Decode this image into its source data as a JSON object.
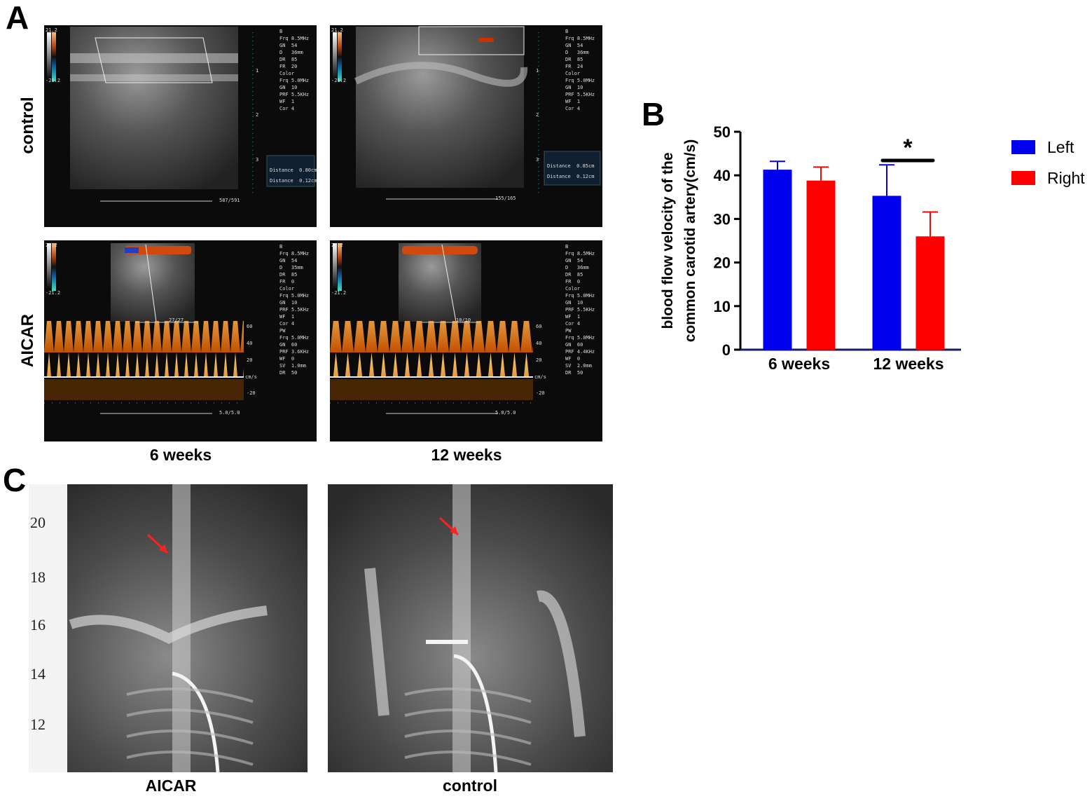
{
  "panels": {
    "a": "A",
    "b": "B",
    "c": "C"
  },
  "panel_a": {
    "row_labels": [
      "control",
      "AICAR"
    ],
    "col_labels": [
      "6 weeks",
      "12 weeks"
    ],
    "scale_top": "21.2",
    "scale_bottom": "-21.2",
    "control_6": {
      "params": "B\nFrq 8.5MHz\nGN  54\nD   36mm\nDR  85\nFR  20\nColor\nFrq 5.0MHz\nGN  10\nPRF 5.5KHz\nWF  1\nCor 4",
      "distance1": "Distance  0.80cm",
      "distance2": "Distance  0.12cm",
      "counter": "587/591",
      "depth_ticks": [
        "1",
        "2",
        "3"
      ]
    },
    "control_12": {
      "params": "B\nFrq 8.5MHz\nGN  54\nD   36mm\nDR  85\nFR  24\nColor\nFrq 5.0MHz\nGN  10\nPRF 5.5KHz\nWF  1\nCor 4",
      "distance1": "Distance  0.85cm",
      "distance2": "Distance  0.12cm",
      "counter": "155/165",
      "depth_ticks": [
        "1",
        "2",
        "3"
      ]
    },
    "aicar_6": {
      "params": "B\nFrq 8.5MHz\nGN  54\nD   35mm\nDR  85\nFR  0\nColor\nFrq 5.0MHz\nGN  10\nPRF 5.5KHz\nWF  1\nCor 4\nPW\nFrq 5.0MHz\nGN  60\nPRF 3.6KHz\nWF  0\nSV  1.0mm\nDR  50",
      "counter_top": "27/27",
      "counter": "5.0/5.0",
      "pw_ticks": [
        "60",
        "40",
        "20",
        "cm/s",
        "-20"
      ]
    },
    "aicar_12": {
      "params": "B\nFrq 8.5MHz\nGN  54\nD   36mm\nDR  85\nFR  0\nColor\nFrq 5.0MHz\nGN  10\nPRF 5.5KHz\nWF  1\nCor 4\nPW\nFrq 5.0MHz\nGN  60\nPRF 4.4KHz\nWF  0\nSV  2.0mm\nDR  50",
      "counter_top": "10/10",
      "counter": "5.0/5.0",
      "pw_ticks": [
        "60",
        "40",
        "20",
        "cm/s",
        "-20"
      ]
    }
  },
  "chart_data": {
    "type": "bar",
    "title": "",
    "ylabel_line1": "blood flow velocity of the",
    "ylabel_line2": "common carotid artery(cm/s)",
    "categories": [
      "6 weeks",
      "12 weeks"
    ],
    "ylim": [
      0,
      50
    ],
    "yticks": [
      "0",
      "10",
      "20",
      "30",
      "40",
      "50"
    ],
    "series": [
      {
        "name": "Left",
        "color": "#0000ee",
        "values": [
          41.3,
          35.3
        ],
        "errors": [
          1.9,
          7.1
        ]
      },
      {
        "name": "Right",
        "color": "#ff0000",
        "values": [
          38.8,
          26.0
        ],
        "errors": [
          3.1,
          5.6
        ]
      }
    ],
    "significance": {
      "category": "12 weeks",
      "label": "*"
    },
    "legend_position": "right"
  },
  "panel_c": {
    "labels": [
      "AICAR",
      "control"
    ],
    "ruler_numbers": [
      "20",
      "18",
      "16",
      "14",
      "12"
    ]
  }
}
